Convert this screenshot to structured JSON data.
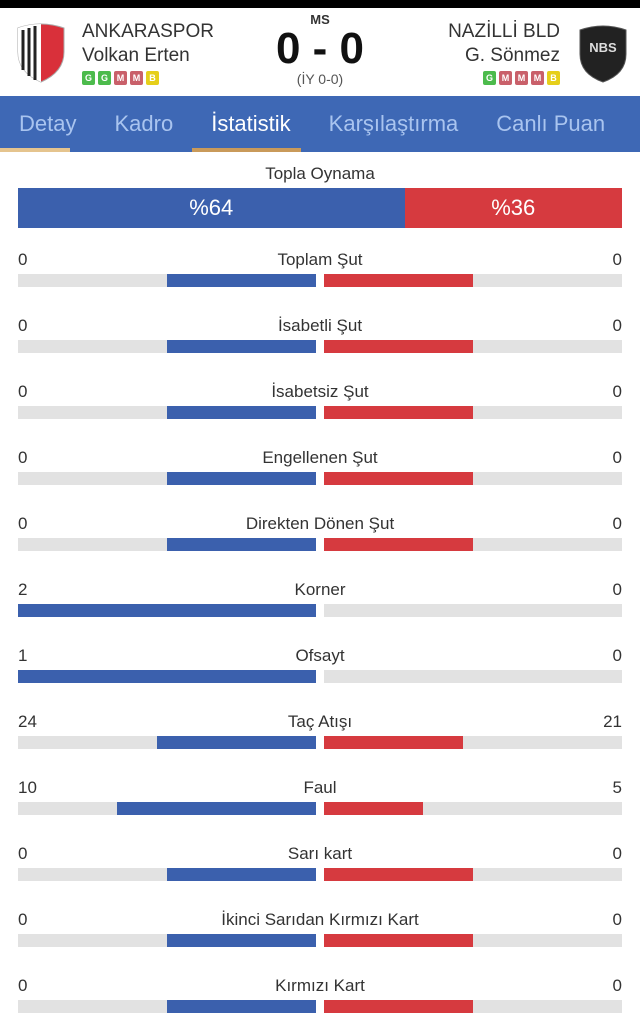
{
  "match": {
    "status": "MS",
    "score": "0 - 0",
    "halftime": "(İY 0-0)",
    "home": {
      "name": "ANKARASPOR",
      "coach": "Volkan Erten",
      "form": [
        "G",
        "G",
        "M",
        "M",
        "B"
      ]
    },
    "away": {
      "name": "NAZİLLİ BLD",
      "coach": "G. Sönmez",
      "form": [
        "G",
        "M",
        "M",
        "M",
        "B"
      ],
      "logo_text": "NBS"
    }
  },
  "colors": {
    "home": "#3b60ad",
    "away": "#d63a3f",
    "tab_bar": "#3e68b5",
    "win": "#4cbb4c",
    "loss": "#c9606a",
    "draw": "#e6cf1a"
  },
  "tabs": [
    {
      "label": "Detay"
    },
    {
      "label": "Kadro"
    },
    {
      "label": "İstatistik",
      "active": true
    },
    {
      "label": "Karşılaştırma"
    },
    {
      "label": "Canlı Puan"
    }
  ],
  "possession": {
    "label": "Topla Oynama",
    "home": "%64",
    "away": "%36",
    "home_pct": 64,
    "away_pct": 36
  },
  "stats": [
    {
      "label": "Toplam Şut",
      "home": 0,
      "away": 0
    },
    {
      "label": "İsabetli Şut",
      "home": 0,
      "away": 0
    },
    {
      "label": "İsabetsiz Şut",
      "home": 0,
      "away": 0
    },
    {
      "label": "Engellenen Şut",
      "home": 0,
      "away": 0
    },
    {
      "label": "Direkten Dönen Şut",
      "home": 0,
      "away": 0
    },
    {
      "label": "Korner",
      "home": 2,
      "away": 0
    },
    {
      "label": "Ofsayt",
      "home": 1,
      "away": 0
    },
    {
      "label": "Taç Atışı",
      "home": 24,
      "away": 21
    },
    {
      "label": "Faul",
      "home": 10,
      "away": 5
    },
    {
      "label": "Sarı kart",
      "home": 0,
      "away": 0
    },
    {
      "label": "İkinci Sarıdan Kırmızı Kart",
      "home": 0,
      "away": 0
    },
    {
      "label": "Kırmızı Kart",
      "home": 0,
      "away": 0
    }
  ]
}
